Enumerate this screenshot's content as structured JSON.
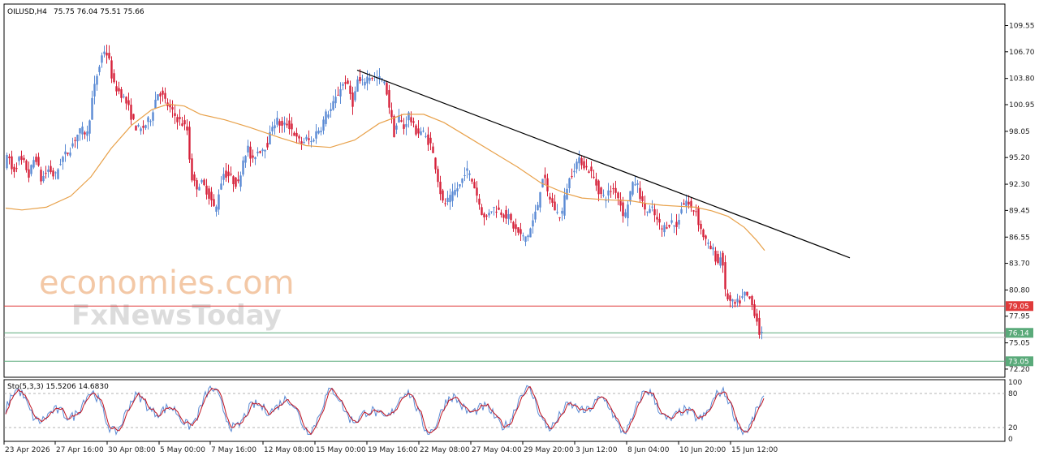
{
  "chart_data": {
    "type": "candlestick",
    "header": {
      "symbol": "OILUSD,H4",
      "ohlc": "75.75 76.04 75.51 75.66"
    },
    "y_axis": {
      "ylim": [
        71.4,
        111.8
      ],
      "ticks": [
        "109.55",
        "106.70",
        "103.80",
        "100.95",
        "98.05",
        "95.20",
        "92.30",
        "89.45",
        "86.55",
        "83.70",
        "80.80",
        "77.95",
        "75.05",
        "72.20"
      ]
    },
    "x_axis": {
      "labels": [
        "23 Apr 2026",
        "27 Apr 16:00",
        "30 Apr 08:00",
        "5 May 00:00",
        "7 May 16:00",
        "12 May 08:00",
        "15 May 00:00",
        "19 May 16:00",
        "22 May 08:00",
        "27 May 04:00",
        "29 May 20:00",
        "3 Jun 12:00",
        "8 Jun 04:00",
        "10 Jun 20:00",
        "15 Jun 12:00"
      ]
    },
    "price_path": [
      [
        0,
        94.5
      ],
      [
        5,
        95.5
      ],
      [
        10,
        93.5
      ],
      [
        18,
        95.0
      ],
      [
        25,
        94.5
      ],
      [
        30,
        93.2
      ],
      [
        38,
        95.5
      ],
      [
        45,
        92.8
      ],
      [
        55,
        94.0
      ],
      [
        62,
        93.0
      ],
      [
        70,
        95.0
      ],
      [
        80,
        96.0
      ],
      [
        88,
        97.5
      ],
      [
        95,
        98.2
      ],
      [
        102,
        97.8
      ],
      [
        108,
        101.5
      ],
      [
        113,
        103.8
      ],
      [
        118,
        105.5
      ],
      [
        122,
        107.0
      ],
      [
        128,
        106.2
      ],
      [
        131,
        104.5
      ],
      [
        135,
        103.0
      ],
      [
        140,
        102.5
      ],
      [
        145,
        102.0
      ],
      [
        152,
        100.8
      ],
      [
        158,
        99.2
      ],
      [
        162,
        98.5
      ],
      [
        168,
        98.2
      ],
      [
        174,
        98.8
      ],
      [
        180,
        99.5
      ],
      [
        186,
        101.5
      ],
      [
        190,
        102.5
      ],
      [
        195,
        101.8
      ],
      [
        200,
        101.0
      ],
      [
        206,
        100.2
      ],
      [
        212,
        99.5
      ],
      [
        218,
        99.0
      ],
      [
        225,
        98.2
      ],
      [
        230,
        93.2
      ],
      [
        236,
        92.0
      ],
      [
        242,
        92.5
      ],
      [
        248,
        91.8
      ],
      [
        255,
        90.5
      ],
      [
        260,
        89.2
      ],
      [
        265,
        92.0
      ],
      [
        270,
        93.5
      ],
      [
        277,
        93.2
      ],
      [
        283,
        92.5
      ],
      [
        288,
        92.3
      ],
      [
        295,
        95.5
      ],
      [
        300,
        96.2
      ],
      [
        305,
        94.5
      ],
      [
        310,
        95.8
      ],
      [
        318,
        96.2
      ],
      [
        325,
        96.8
      ],
      [
        330,
        98.8
      ],
      [
        336,
        99.2
      ],
      [
        342,
        98.5
      ],
      [
        348,
        98.9
      ],
      [
        355,
        98.2
      ],
      [
        360,
        97.2
      ],
      [
        366,
        96.8
      ],
      [
        372,
        97.2
      ],
      [
        378,
        96.9
      ],
      [
        385,
        98.1
      ],
      [
        390,
        98.5
      ],
      [
        396,
        99.9
      ],
      [
        402,
        100.4
      ],
      [
        408,
        101.6
      ],
      [
        414,
        102.8
      ],
      [
        420,
        103.5
      ],
      [
        426,
        102.1
      ],
      [
        430,
        100.8
      ],
      [
        434,
        103.7
      ],
      [
        440,
        103.2
      ],
      [
        446,
        103.9
      ],
      [
        452,
        104.1
      ],
      [
        458,
        103.8
      ],
      [
        465,
        103.7
      ],
      [
        470,
        102.8
      ],
      [
        476,
        99.8
      ],
      [
        480,
        97.8
      ],
      [
        486,
        99.6
      ],
      [
        492,
        98.4
      ],
      [
        498,
        99.9
      ],
      [
        503,
        98.7
      ],
      [
        508,
        97.9
      ],
      [
        514,
        98.1
      ],
      [
        519,
        97.4
      ],
      [
        525,
        96.6
      ],
      [
        530,
        94.8
      ],
      [
        535,
        92.3
      ],
      [
        540,
        90.2
      ],
      [
        545,
        90.4
      ],
      [
        550,
        90.8
      ],
      [
        556,
        91.7
      ],
      [
        562,
        92.3
      ],
      [
        568,
        94.0
      ],
      [
        574,
        93.1
      ],
      [
        580,
        91.8
      ],
      [
        586,
        89.8
      ],
      [
        592,
        88.3
      ],
      [
        598,
        89.6
      ],
      [
        604,
        89.7
      ],
      [
        610,
        89.4
      ],
      [
        616,
        89.0
      ],
      [
        622,
        88.6
      ],
      [
        628,
        87.5
      ],
      [
        634,
        86.9
      ],
      [
        640,
        86.4
      ],
      [
        646,
        86.9
      ],
      [
        652,
        88.6
      ],
      [
        656,
        89.6
      ],
      [
        660,
        91.8
      ],
      [
        664,
        93.6
      ],
      [
        668,
        91.5
      ],
      [
        674,
        90.4
      ],
      [
        680,
        89.2
      ],
      [
        686,
        88.8
      ],
      [
        692,
        91.8
      ],
      [
        698,
        93.3
      ],
      [
        704,
        94.6
      ],
      [
        710,
        94.9
      ],
      [
        716,
        94.1
      ],
      [
        722,
        93.7
      ],
      [
        728,
        92.5
      ],
      [
        734,
        91.2
      ],
      [
        740,
        90.8
      ],
      [
        746,
        91.6
      ],
      [
        752,
        91.9
      ],
      [
        758,
        90.4
      ],
      [
        764,
        88.6
      ],
      [
        770,
        91.2
      ],
      [
        776,
        92.6
      ],
      [
        780,
        92.1
      ],
      [
        786,
        90.1
      ],
      [
        792,
        89.3
      ],
      [
        798,
        89.5
      ],
      [
        804,
        88.3
      ],
      [
        810,
        87.4
      ],
      [
        816,
        87.9
      ],
      [
        822,
        88.2
      ],
      [
        828,
        87.6
      ],
      [
        834,
        89.8
      ],
      [
        840,
        90.5
      ],
      [
        846,
        89.6
      ],
      [
        852,
        89.4
      ],
      [
        856,
        87.8
      ],
      [
        862,
        86.5
      ],
      [
        868,
        85.4
      ],
      [
        874,
        85.0
      ],
      [
        878,
        83.6
      ],
      [
        884,
        84.8
      ],
      [
        888,
        80.5
      ],
      [
        894,
        79.5
      ],
      [
        900,
        79.2
      ],
      [
        906,
        79.6
      ],
      [
        912,
        80.3
      ],
      [
        918,
        79.8
      ],
      [
        922,
        78.9
      ],
      [
        926,
        77.9
      ],
      [
        930,
        76.2
      ],
      [
        935,
        75.66
      ]
    ],
    "ma": [
      [
        0,
        89.7
      ],
      [
        20,
        89.5
      ],
      [
        50,
        89.8
      ],
      [
        80,
        91.0
      ],
      [
        105,
        93.1
      ],
      [
        130,
        96.2
      ],
      [
        155,
        98.7
      ],
      [
        180,
        100.4
      ],
      [
        200,
        101.0
      ],
      [
        220,
        100.8
      ],
      [
        240,
        99.9
      ],
      [
        270,
        99.3
      ],
      [
        300,
        98.5
      ],
      [
        340,
        97.3
      ],
      [
        370,
        96.5
      ],
      [
        400,
        96.3
      ],
      [
        430,
        97.1
      ],
      [
        460,
        98.9
      ],
      [
        490,
        99.9
      ],
      [
        515,
        99.9
      ],
      [
        540,
        99.0
      ],
      [
        570,
        97.4
      ],
      [
        600,
        95.8
      ],
      [
        630,
        94.2
      ],
      [
        660,
        92.4
      ],
      [
        690,
        91.3
      ],
      [
        710,
        90.8
      ],
      [
        740,
        90.6
      ],
      [
        770,
        90.5
      ],
      [
        790,
        90.2
      ],
      [
        810,
        90.0
      ],
      [
        830,
        89.9
      ],
      [
        850,
        89.8
      ],
      [
        870,
        89.4
      ],
      [
        890,
        88.8
      ],
      [
        910,
        87.6
      ],
      [
        925,
        86.2
      ],
      [
        935,
        85.1
      ]
    ],
    "trendline": [
      [
        433,
        104.7
      ],
      [
        1040,
        84.3
      ]
    ],
    "levels": [
      {
        "value": 79.05,
        "label": "79.05",
        "color": "#e03a3a"
      },
      {
        "value": 76.14,
        "label": "76.14",
        "color": "#5aaa7a"
      },
      {
        "value": 73.05,
        "label": "73.05",
        "color": "#5aaa7a"
      }
    ],
    "colors": {
      "up": "#5a8ad4",
      "down": "#d6213a",
      "ma": "#e8a14a",
      "trend": "#000000"
    },
    "oscillator": {
      "label": "Sto(5,3,3) 15.5206 14.6830",
      "ylim": [
        0,
        100
      ],
      "ticks": [
        "100",
        "80",
        "20",
        "0"
      ],
      "levels": [
        80,
        20
      ],
      "main_color": "#5a8ad4",
      "signal_color": "#c0121f"
    }
  },
  "watermark": {
    "line1": "economies.com",
    "line2": "FxNewsToday"
  }
}
